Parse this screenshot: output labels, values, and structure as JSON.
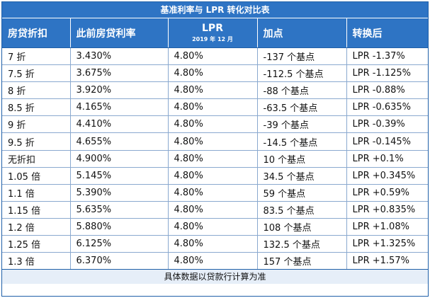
{
  "title": "基准利率与 LPR 转化对比表",
  "headers": {
    "discount": "房贷折扣",
    "prev_rate": "此前房贷利率",
    "lpr": "LPR",
    "lpr_sub": "2019 年 12 月",
    "add": "加点",
    "converted": "转换后"
  },
  "rows": [
    {
      "discount": "7 折",
      "prev_rate": "3.430%",
      "lpr": "4.80%",
      "add": "-137 个基点",
      "converted": "LPR -1.37%"
    },
    {
      "discount": "7.5 折",
      "prev_rate": "3.675%",
      "lpr": "4.80%",
      "add": "-112.5 个基点",
      "converted": "LPR -1.125%"
    },
    {
      "discount": "8 折",
      "prev_rate": "3.920%",
      "lpr": "4.80%",
      "add": "-88 个基点",
      "converted": "LPR -0.88%"
    },
    {
      "discount": "8.5 折",
      "prev_rate": "4.165%",
      "lpr": "4.80%",
      "add": "-63.5 个基点",
      "converted": "LPR -0.635%"
    },
    {
      "discount": "9 折",
      "prev_rate": "4.410%",
      "lpr": "4.80%",
      "add": "-39 个基点",
      "converted": "LPR -0.39%"
    },
    {
      "discount": "9.5 折",
      "prev_rate": "4.655%",
      "lpr": "4.80%",
      "add": "-14.5 个基点",
      "converted": "LPR -0.145%"
    },
    {
      "discount": "无折扣",
      "prev_rate": "4.900%",
      "lpr": "4.80%",
      "add": "10 个基点",
      "converted": "LPR +0.1%"
    },
    {
      "discount": "1.05 倍",
      "prev_rate": "5.145%",
      "lpr": "4.80%",
      "add": "34.5 个基点",
      "converted": "LPR +0.345%"
    },
    {
      "discount": "1.1 倍",
      "prev_rate": "5.390%",
      "lpr": "4.80%",
      "add": "59 个基点",
      "converted": "LPR +0.59%"
    },
    {
      "discount": "1.15 倍",
      "prev_rate": "5.635%",
      "lpr": "4.80%",
      "add": "83.5 个基点",
      "converted": "LPR +0.835%"
    },
    {
      "discount": "1.2 倍",
      "prev_rate": "5.880%",
      "lpr": "4.80%",
      "add": "108 个基点",
      "converted": "LPR +1.08%"
    },
    {
      "discount": "1.25 倍",
      "prev_rate": "6.125%",
      "lpr": "4.80%",
      "add": "132.5 个基点",
      "converted": "LPR +1.325%"
    },
    {
      "discount": "1.3 倍",
      "prev_rate": "6.370%",
      "lpr": "4.80%",
      "add": "157 个基点",
      "converted": "LPR +1.57%"
    }
  ],
  "footer": "具体数据以贷款行计算为准",
  "colors": {
    "header_bg": "#2e74c4",
    "footer_bg": "#e6eef8",
    "border": "#1f5fa8"
  }
}
